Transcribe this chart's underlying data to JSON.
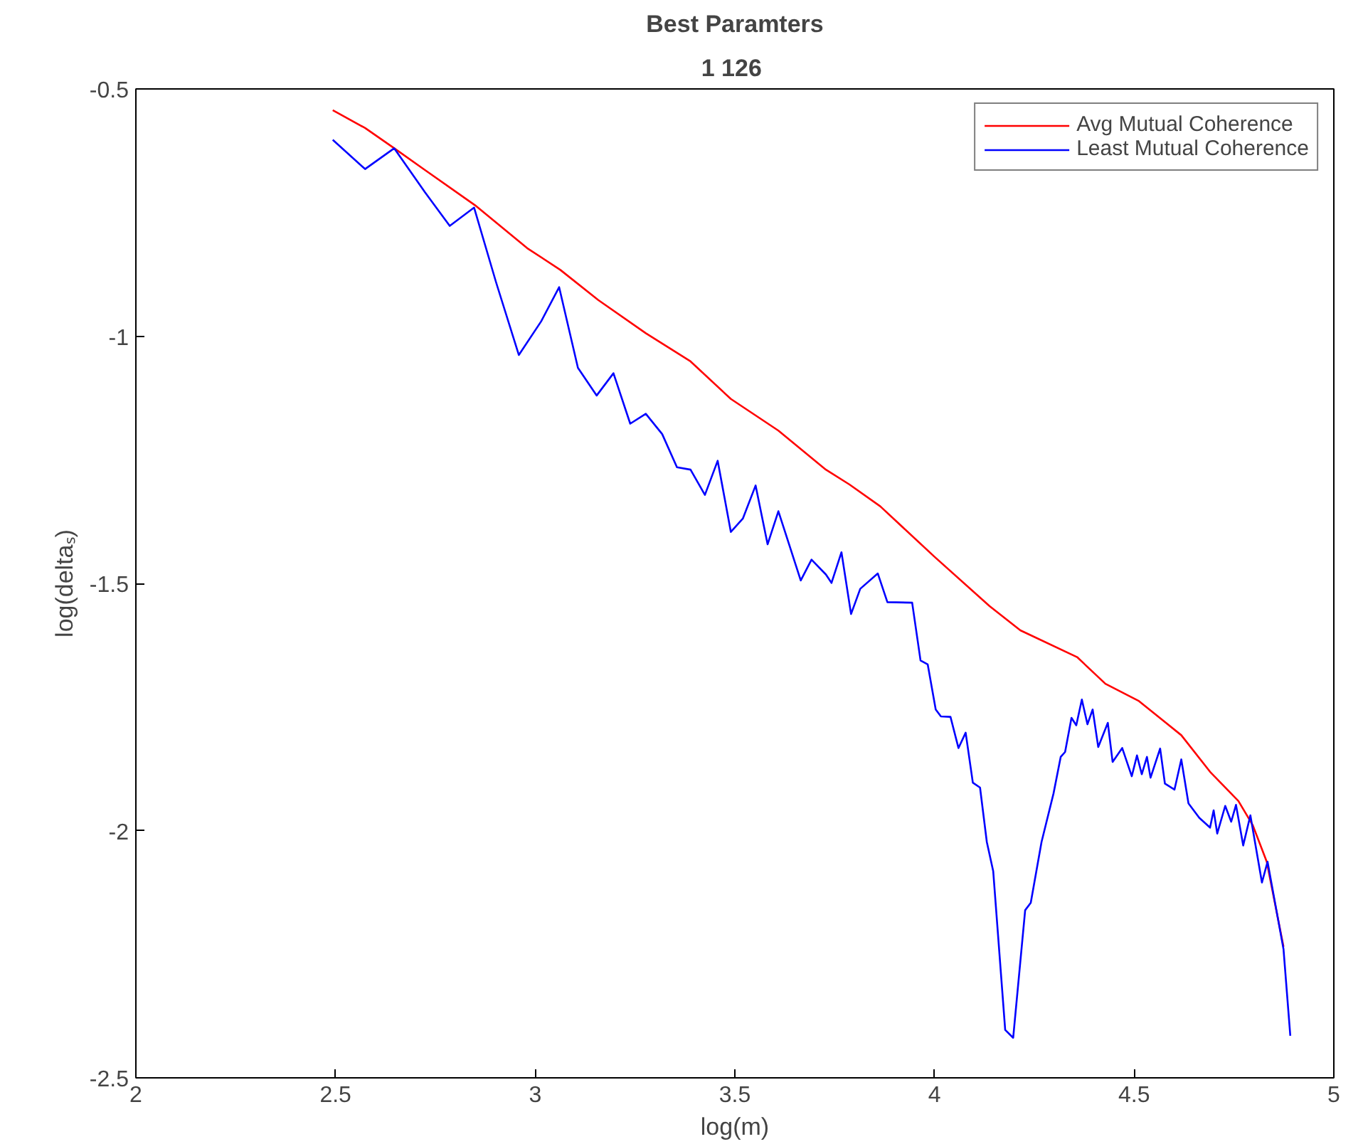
{
  "chart_data": {
    "type": "line",
    "title": "Best Paramters",
    "subtitle": "1  126",
    "xlabel": "log(m)",
    "ylabel": "log(deltaₛ)",
    "xlim": [
      2,
      5
    ],
    "xticks": [
      2,
      2.5,
      3,
      3.5,
      4,
      4.5,
      5
    ],
    "ylim": [
      -2.5,
      -0.5
    ],
    "yticks": [
      -2.5,
      -2,
      -1.5,
      -1,
      -0.5
    ],
    "grid": false,
    "legend": "top right",
    "line_style": "solid",
    "series": [
      {
        "name": "Avg Mutual Coherence",
        "color": "#ff0000",
        "x": [
          2.493,
          2.574,
          2.647,
          2.724,
          2.849,
          2.98,
          3.063,
          3.158,
          3.277,
          3.389,
          3.49,
          3.609,
          3.728,
          3.787,
          3.864,
          4.001,
          4.138,
          4.215,
          4.357,
          4.428,
          4.512,
          4.618,
          4.69,
          4.761,
          4.797,
          4.832,
          4.874
        ],
        "values": [
          -0.543,
          -0.579,
          -0.62,
          -0.664,
          -0.735,
          -0.822,
          -0.866,
          -0.927,
          -0.994,
          -1.051,
          -1.127,
          -1.191,
          -1.27,
          -1.3,
          -1.344,
          -1.447,
          -1.546,
          -1.595,
          -1.649,
          -1.703,
          -1.738,
          -1.807,
          -1.881,
          -1.94,
          -1.989,
          -2.063,
          -2.235
        ]
      },
      {
        "name": "Least Mutual Coherence",
        "color": "#0000ff",
        "x": [
          2.493,
          2.574,
          2.647,
          2.724,
          2.786,
          2.847,
          2.902,
          2.959,
          3.015,
          3.06,
          3.107,
          3.154,
          3.196,
          3.238,
          3.277,
          3.318,
          3.355,
          3.389,
          3.425,
          3.457,
          3.49,
          3.52,
          3.552,
          3.582,
          3.609,
          3.665,
          3.692,
          3.728,
          3.742,
          3.767,
          3.791,
          3.814,
          3.858,
          3.882,
          3.944,
          3.965,
          3.983,
          4.003,
          4.016,
          4.04,
          4.06,
          4.078,
          4.096,
          4.114,
          4.131,
          4.147,
          4.177,
          4.197,
          4.227,
          4.241,
          4.268,
          4.298,
          4.316,
          4.327,
          4.343,
          4.355,
          4.369,
          4.383,
          4.396,
          4.41,
          4.434,
          4.446,
          4.47,
          4.494,
          4.507,
          4.519,
          4.532,
          4.541,
          4.565,
          4.577,
          4.601,
          4.618,
          4.636,
          4.663,
          4.69,
          4.699,
          4.708,
          4.728,
          4.743,
          4.755,
          4.773,
          4.791,
          4.82,
          4.834,
          4.874,
          4.891
        ],
        "values": [
          -0.603,
          -0.662,
          -0.62,
          -0.709,
          -0.777,
          -0.74,
          -0.891,
          -1.038,
          -0.97,
          -0.901,
          -1.064,
          -1.12,
          -1.075,
          -1.177,
          -1.157,
          -1.198,
          -1.265,
          -1.27,
          -1.321,
          -1.252,
          -1.396,
          -1.369,
          -1.302,
          -1.421,
          -1.354,
          -1.494,
          -1.452,
          -1.482,
          -1.499,
          -1.437,
          -1.562,
          -1.511,
          -1.48,
          -1.538,
          -1.539,
          -1.656,
          -1.664,
          -1.755,
          -1.769,
          -1.77,
          -1.833,
          -1.802,
          -1.903,
          -1.913,
          -2.023,
          -2.082,
          -2.403,
          -2.419,
          -2.161,
          -2.146,
          -2.023,
          -1.925,
          -1.851,
          -1.841,
          -1.772,
          -1.787,
          -1.735,
          -1.785,
          -1.755,
          -1.831,
          -1.782,
          -1.861,
          -1.833,
          -1.89,
          -1.848,
          -1.886,
          -1.851,
          -1.893,
          -1.834,
          -1.905,
          -1.917,
          -1.856,
          -1.945,
          -1.974,
          -1.994,
          -1.959,
          -2.006,
          -1.95,
          -1.982,
          -1.948,
          -2.03,
          -1.969,
          -2.105,
          -2.063,
          -2.24,
          -2.415
        ]
      }
    ]
  }
}
